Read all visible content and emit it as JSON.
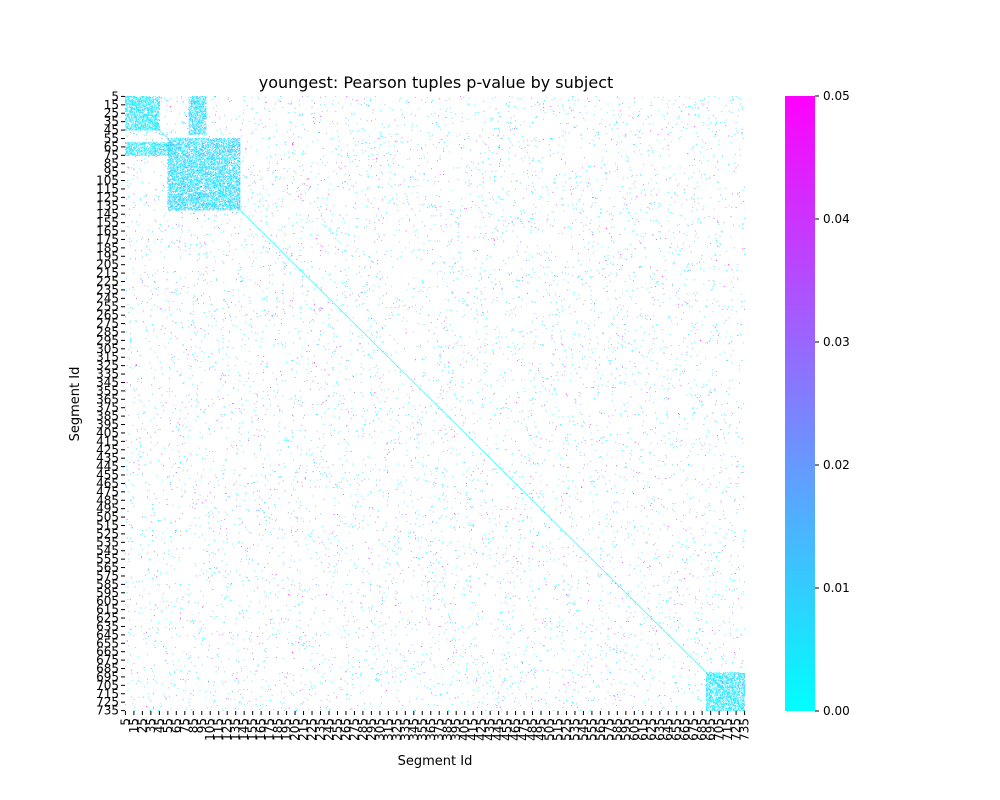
{
  "chart_data": {
    "type": "heatmap",
    "title": "youngest: Pearson tuples p-value by subject",
    "xlabel": "Segment Id",
    "ylabel": "Segment Id",
    "segment_range": [
      5,
      735
    ],
    "segment_step": 5,
    "value_range": [
      0,
      0.05
    ],
    "colormap": "cool",
    "colors": {
      "low": "#00ffff",
      "high": "#ff00ff"
    },
    "colorbar": {
      "ticks": [
        "0.00",
        "0.01",
        "0.02",
        "0.03",
        "0.04",
        "0.05"
      ],
      "placement": "right"
    },
    "y_tick_labels": [
      "5",
      "15",
      "25",
      "35",
      "45",
      "55",
      "65",
      "75",
      "85",
      "95",
      "105",
      "115",
      "125",
      "135",
      "145",
      "155",
      "165",
      "175",
      "185",
      "195",
      "205",
      "215",
      "225",
      "235",
      "245",
      "255",
      "265",
      "275",
      "285",
      "295",
      "305",
      "315",
      "325",
      "335",
      "345",
      "355",
      "365",
      "375",
      "385",
      "395",
      "405",
      "415",
      "425",
      "435",
      "445",
      "455",
      "465",
      "475",
      "485",
      "495",
      "505",
      "515",
      "525",
      "535",
      "545",
      "555",
      "565",
      "575",
      "585",
      "595",
      "605",
      "615",
      "625",
      "635",
      "645",
      "655",
      "665",
      "675",
      "685",
      "695",
      "705",
      "715",
      "725",
      "735"
    ],
    "x_tick_labels": [
      "5",
      "15",
      "25",
      "35",
      "45",
      "55",
      "65",
      "75",
      "85",
      "95",
      "105",
      "115",
      "125",
      "135",
      "145",
      "155",
      "165",
      "175",
      "185",
      "195",
      "205",
      "215",
      "225",
      "235",
      "245",
      "255",
      "265",
      "275",
      "285",
      "295",
      "305",
      "315",
      "325",
      "335",
      "345",
      "355",
      "365",
      "375",
      "385",
      "395",
      "405",
      "415",
      "425",
      "435",
      "445",
      "455",
      "465",
      "475",
      "485",
      "495",
      "505",
      "515",
      "525",
      "535",
      "545",
      "555",
      "565",
      "575",
      "585",
      "595",
      "605",
      "615",
      "625",
      "635",
      "645",
      "655",
      "665",
      "675",
      "685",
      "695",
      "705",
      "715",
      "725",
      "735"
    ],
    "significant_regions": [
      {
        "x_range": [
          5,
          45
        ],
        "y_range": [
          5,
          45
        ],
        "max_p": 0.01
      },
      {
        "x_range": [
          80,
          100
        ],
        "y_range": [
          5,
          50
        ],
        "max_p": 0.015
      },
      {
        "x_range": [
          5,
          60
        ],
        "y_range": [
          60,
          75
        ],
        "max_p": 0.01
      },
      {
        "x_range": [
          55,
          140
        ],
        "y_range": [
          55,
          140
        ],
        "max_p": 0.015
      },
      {
        "x_range": [
          690,
          735
        ],
        "y_range": [
          690,
          735
        ],
        "max_p": 0.01
      }
    ],
    "diagonal": {
      "p_value": 0.0
    },
    "grid": false,
    "missing_cells": "blank (p > 0.05)"
  }
}
